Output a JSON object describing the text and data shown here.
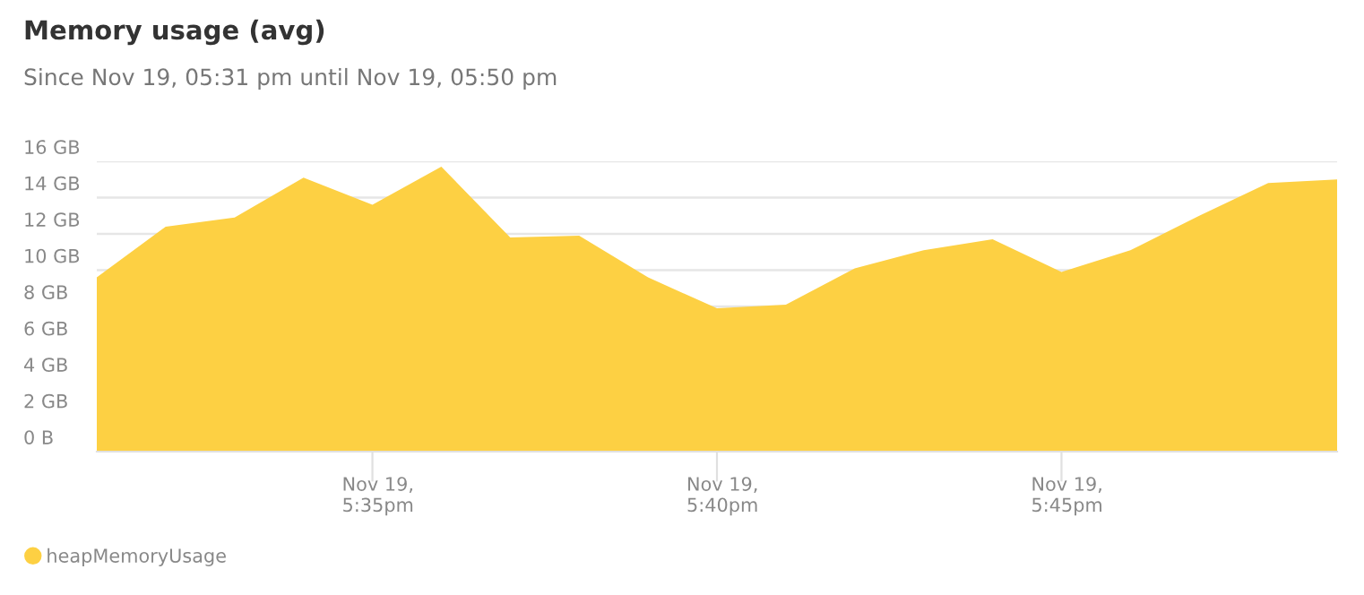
{
  "chart_data": {
    "type": "area",
    "title": "Memory usage (avg)",
    "subtitle": "Since Nov 19, 05:31 pm until Nov 19, 05:50 pm",
    "categories": [
      null,
      null,
      null,
      null,
      "Nov 19,\n5:35pm",
      null,
      null,
      null,
      null,
      "Nov 19,\n5:40pm",
      null,
      null,
      null,
      null,
      "Nov 19,\n5:45pm",
      null,
      null,
      null,
      null
    ],
    "series": [
      {
        "name": "heapMemoryUsage",
        "color": "#fdd043",
        "values": [
          9.6,
          12.4,
          12.9,
          15.1,
          13.6,
          15.7,
          11.8,
          11.9,
          9.6,
          7.9,
          8.1,
          10.1,
          11.1,
          11.7,
          9.9,
          11.1,
          13.0,
          14.8,
          15.0
        ]
      }
    ],
    "ylim": [
      0,
      16
    ],
    "yticks": [
      {
        "value": 0,
        "label": "0 B"
      },
      {
        "value": 2,
        "label": "2 GB"
      },
      {
        "value": 4,
        "label": "4 GB"
      },
      {
        "value": 6,
        "label": "6 GB"
      },
      {
        "value": 8,
        "label": "8 GB"
      },
      {
        "value": 10,
        "label": "10 GB"
      },
      {
        "value": 12,
        "label": "12 GB"
      },
      {
        "value": 14,
        "label": "14 GB"
      },
      {
        "value": 16,
        "label": "16 GB"
      }
    ],
    "grid": "y",
    "legend": "bottom left"
  }
}
